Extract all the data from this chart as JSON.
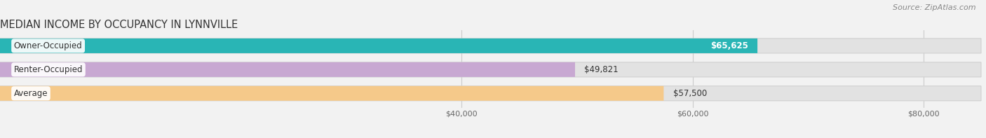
{
  "title": "MEDIAN INCOME BY OCCUPANCY IN LYNNVILLE",
  "source": "Source: ZipAtlas.com",
  "categories": [
    "Owner-Occupied",
    "Renter-Occupied",
    "Average"
  ],
  "values": [
    65625,
    49821,
    57500
  ],
  "labels": [
    "$65,625",
    "$49,821",
    "$57,500"
  ],
  "bar_colors": [
    "#29b5b5",
    "#c8a8d2",
    "#f5c98a"
  ],
  "background_color": "#f2f2f2",
  "bar_bg_color": "#e2e2e2",
  "xlim_min": 0,
  "xlim_max": 85000,
  "xticks": [
    40000,
    60000,
    80000
  ],
  "xtick_labels": [
    "$40,000",
    "$60,000",
    "$80,000"
  ],
  "title_fontsize": 10.5,
  "label_fontsize": 8.5,
  "value_fontsize": 8.5,
  "axis_fontsize": 8,
  "source_fontsize": 8
}
